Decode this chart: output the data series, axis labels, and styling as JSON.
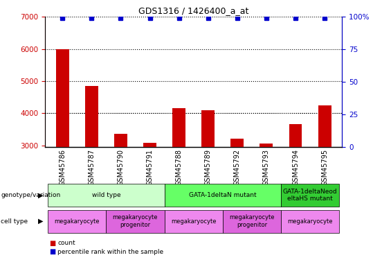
{
  "title": "GDS1316 / 1426400_a_at",
  "samples": [
    "GSM45786",
    "GSM45787",
    "GSM45790",
    "GSM45791",
    "GSM45788",
    "GSM45789",
    "GSM45792",
    "GSM45793",
    "GSM45794",
    "GSM45795"
  ],
  "counts": [
    6000,
    4850,
    3350,
    3080,
    4150,
    4100,
    3200,
    3050,
    3650,
    4250
  ],
  "percentile_ranks": [
    99,
    99,
    99,
    99,
    99,
    99,
    99,
    99,
    99,
    99
  ],
  "ylim_left": [
    2950,
    7000
  ],
  "ylim_right": [
    0,
    100
  ],
  "yticks_left": [
    3000,
    4000,
    5000,
    6000,
    7000
  ],
  "yticks_right": [
    0,
    25,
    50,
    75,
    100
  ],
  "bar_color": "#cc0000",
  "dot_color": "#0000cc",
  "bar_bottom": 2950,
  "genotype_groups": [
    {
      "label": "wild type",
      "start": 0,
      "end": 4,
      "color": "#ccffcc"
    },
    {
      "label": "GATA-1deltaN mutant",
      "start": 4,
      "end": 8,
      "color": "#66ff66"
    },
    {
      "label": "GATA-1deltaNeod\neltaHS mutant",
      "start": 8,
      "end": 10,
      "color": "#33cc33"
    }
  ],
  "celltype_groups": [
    {
      "label": "megakaryocyte",
      "start": 0,
      "end": 2,
      "color": "#ee88ee"
    },
    {
      "label": "megakaryocyte\nprogenitor",
      "start": 2,
      "end": 4,
      "color": "#dd66dd"
    },
    {
      "label": "megakaryocyte",
      "start": 4,
      "end": 6,
      "color": "#ee88ee"
    },
    {
      "label": "megakaryocyte\nprogenitor",
      "start": 6,
      "end": 8,
      "color": "#dd66dd"
    },
    {
      "label": "megakaryocyte",
      "start": 8,
      "end": 10,
      "color": "#ee88ee"
    }
  ],
  "legend_count_color": "#cc0000",
  "legend_percentile_color": "#0000cc",
  "left_label_color": "#cc0000",
  "right_label_color": "#0000cc",
  "grid_color": "#000000",
  "bg_color": "#ffffff"
}
